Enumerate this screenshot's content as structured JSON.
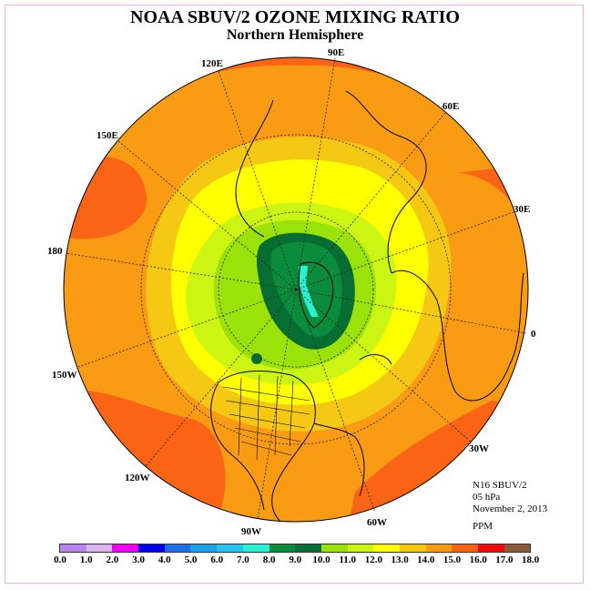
{
  "title": "NOAA SBUV/2 OZONE MIXING RATIO",
  "subtitle": "Northern Hemisphere",
  "info": {
    "instrument": "N16 SBUV/2",
    "pressure_level": "05 hPa",
    "date": "November 2, 2013",
    "units": "PPM"
  },
  "longitude_labels": [
    "90E",
    "60E",
    "30E",
    "0",
    "30W",
    "60W",
    "90W",
    "120W",
    "150W",
    "180",
    "150E",
    "120E"
  ],
  "colorbar": {
    "ticks": [
      "0.0",
      "1.0",
      "2.0",
      "3.0",
      "4.0",
      "5.0",
      "6.0",
      "7.0",
      "8.0",
      "9.0",
      "10.0",
      "11.0",
      "12.0",
      "13.0",
      "14.0",
      "15.0",
      "16.0",
      "17.0",
      "18.0"
    ],
    "colors": [
      "#b983f0",
      "#dcb4f0",
      "#f000f0",
      "#0000e6",
      "#1e6ee6",
      "#1ea0e6",
      "#28c3f0",
      "#2df0d2",
      "#0a8c3c",
      "#066e32",
      "#9be10a",
      "#cdf514",
      "#ffff00",
      "#f5c814",
      "#fa9b14",
      "#fa6414",
      "#f00a0a",
      "#8b5a3c"
    ]
  },
  "chart_data": {
    "type": "heatmap",
    "projection": "north polar stereographic",
    "variable": "ozone mixing ratio",
    "units": "PPM",
    "pressure_hPa": 5,
    "date": "November 2, 2013",
    "color_scale": {
      "min": 0.0,
      "max": 18.0,
      "step": 1.0
    },
    "value_range_observed": [
      7.0,
      16.0
    ],
    "regions": [
      {
        "area": "north pole / Arctic core",
        "approx_value": 9.5
      },
      {
        "area": "polar vortex edge",
        "approx_value": 10.5
      },
      {
        "area": "high latitudes ring",
        "approx_value": 12.5
      },
      {
        "area": "mid latitudes",
        "approx_value": 14.5
      },
      {
        "area": "subtropical bands",
        "approx_value": 15.5
      }
    ]
  }
}
